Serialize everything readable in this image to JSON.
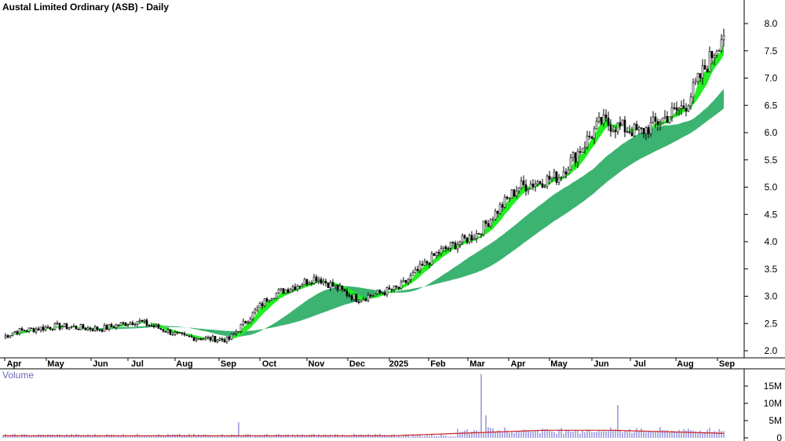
{
  "chart_data": {
    "type": "candlestick",
    "title": "Austal Limited Ordinary (ASB) - Daily",
    "volume_label": "Volume",
    "price_axis": {
      "ticks": [
        "8.0",
        "7.5",
        "7.0",
        "6.5",
        "6.0",
        "5.5",
        "5.0",
        "4.5",
        "4.0",
        "3.5",
        "3.0",
        "2.5",
        "2.0"
      ],
      "range": [
        1.9,
        8.4
      ]
    },
    "volume_axis": {
      "ticks": [
        "15M",
        "10M",
        "5M",
        "0"
      ],
      "range": [
        0,
        20
      ]
    },
    "x_axis": {
      "ticks": [
        "Apr",
        "May",
        "Jun",
        "Jul",
        "Aug",
        "Sep",
        "Oct",
        "Nov",
        "Dec",
        "2025",
        "Feb",
        "Mar",
        "Apr",
        "May",
        "Jun",
        "Jul",
        "Aug",
        "Sep"
      ]
    },
    "monthly_closes": [
      {
        "month": "Apr 2024",
        "price": 2.35
      },
      {
        "month": "May 2024",
        "price": 2.45
      },
      {
        "month": "Jun 2024",
        "price": 2.4
      },
      {
        "month": "Jul 2024",
        "price": 2.55
      },
      {
        "month": "Aug 2024",
        "price": 2.25
      },
      {
        "month": "Sep 2024",
        "price": 2.2
      },
      {
        "month": "Oct 2024",
        "price": 3.0
      },
      {
        "month": "Nov 2024",
        "price": 3.35
      },
      {
        "month": "Dec 2024",
        "price": 2.95
      },
      {
        "month": "Jan 2025",
        "price": 3.15
      },
      {
        "month": "Feb 2025",
        "price": 3.8
      },
      {
        "month": "Mar 2025",
        "price": 4.15
      },
      {
        "month": "Apr 2025",
        "price": 5.0
      },
      {
        "month": "May 2025",
        "price": 5.2
      },
      {
        "month": "Jun 2025",
        "price": 6.2
      },
      {
        "month": "Jul 2025",
        "price": 6.0
      },
      {
        "month": "Aug 2025",
        "price": 6.5
      },
      {
        "month": "Sep 2025",
        "price": 7.95
      }
    ],
    "volume_spikes": [
      {
        "month": "Sep 2024",
        "value": 4.5
      },
      {
        "month": "Mar 2025",
        "value": 18.5
      },
      {
        "month": "Mar 2025",
        "value": 6.5
      },
      {
        "month": "Jun 2025",
        "value": 9.5
      }
    ],
    "colors": {
      "candle": "#000000",
      "short_band_up": "#22ee22",
      "short_band_down": "#ff7a40",
      "long_band": "#3cb371",
      "volume_bar": "#5c5cc8",
      "volume_avg": "#d02020"
    },
    "grid": false
  }
}
